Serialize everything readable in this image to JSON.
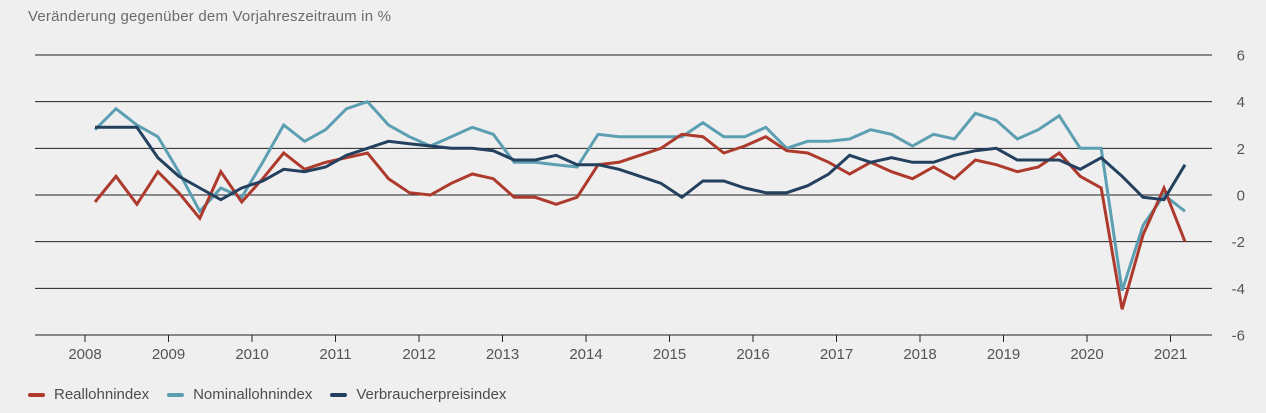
{
  "chart_data": {
    "type": "line",
    "title": "Veränderung gegenüber dem Vorjahreszeitraum in %",
    "x_tick_labels": [
      "2008",
      "2009",
      "2010",
      "2011",
      "2012",
      "2013",
      "2014",
      "2015",
      "2016",
      "2017",
      "2018",
      "2019",
      "2020",
      "2021"
    ],
    "x_frequency": "quarterly",
    "x_range": "2008-Q1 to 2021-Q1",
    "y_ticks": [
      6,
      4,
      2,
      0,
      -2,
      -4,
      -6
    ],
    "ylim": [
      -6,
      6
    ],
    "grid": true,
    "legend_position": "bottom-left",
    "series": [
      {
        "name": "Reallohnindex",
        "color": "#ad3a2c",
        "values": [
          -0.3,
          0.8,
          -0.4,
          1.0,
          0.1,
          -1.0,
          1.0,
          -0.3,
          0.7,
          1.8,
          1.1,
          1.4,
          1.6,
          1.8,
          0.7,
          0.1,
          0.0,
          0.5,
          0.9,
          0.7,
          -0.1,
          -0.1,
          -0.4,
          -0.1,
          1.3,
          1.4,
          1.7,
          2.0,
          2.6,
          2.5,
          1.8,
          2.1,
          2.5,
          1.9,
          1.8,
          1.4,
          0.9,
          1.4,
          1.0,
          0.7,
          1.2,
          0.7,
          1.5,
          1.3,
          1.0,
          1.2,
          1.8,
          0.8,
          0.3,
          -4.9,
          -1.7,
          0.3,
          -2.0
        ]
      },
      {
        "name": "Nominallohnindex",
        "color": "#5d9fb2",
        "values": [
          2.8,
          3.7,
          3.0,
          2.5,
          1.0,
          -0.7,
          0.3,
          -0.1,
          1.4,
          3.0,
          2.3,
          2.8,
          3.7,
          4.0,
          3.0,
          2.5,
          2.1,
          2.5,
          2.9,
          2.6,
          1.4,
          1.4,
          1.3,
          1.2,
          2.6,
          2.5,
          2.5,
          2.5,
          2.5,
          3.1,
          2.5,
          2.5,
          2.9,
          2.0,
          2.3,
          2.3,
          2.4,
          2.8,
          2.6,
          2.1,
          2.6,
          2.4,
          3.5,
          3.2,
          2.4,
          2.8,
          3.4,
          2.0,
          2.0,
          -4.1,
          -1.3,
          0.0,
          -0.7
        ]
      },
      {
        "name": "Verbraucherpreisindex",
        "color": "#24405f",
        "values": [
          2.9,
          2.9,
          2.9,
          1.6,
          0.8,
          0.3,
          -0.2,
          0.3,
          0.6,
          1.1,
          1.0,
          1.2,
          1.7,
          2.0,
          2.3,
          2.2,
          2.1,
          2.0,
          2.0,
          1.9,
          1.5,
          1.5,
          1.7,
          1.3,
          1.3,
          1.1,
          0.8,
          0.5,
          -0.1,
          0.6,
          0.6,
          0.3,
          0.1,
          0.1,
          0.4,
          0.9,
          1.7,
          1.4,
          1.6,
          1.4,
          1.4,
          1.7,
          1.9,
          2.0,
          1.5,
          1.5,
          1.5,
          1.1,
          1.6,
          0.8,
          -0.1,
          -0.2,
          1.3
        ]
      }
    ]
  },
  "colors": {
    "background": "#efefef",
    "gridline": "#222222",
    "tick_text": "#555555",
    "title_text": "#6b6b6b",
    "legend_text": "#4d4d4d"
  }
}
